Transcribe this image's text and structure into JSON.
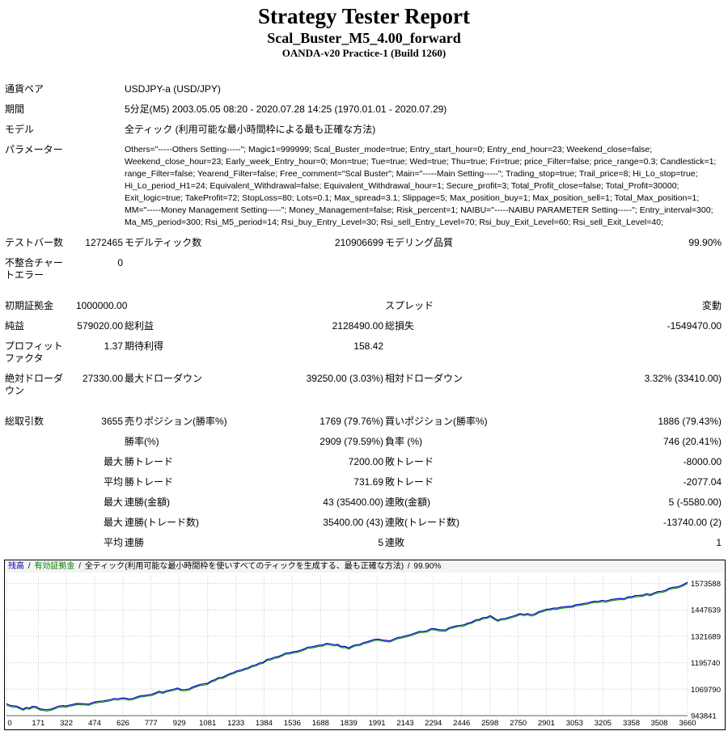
{
  "header": {
    "title": "Strategy Tester Report",
    "subtitle": "Scal_Buster_M5_4.00_forward",
    "server": "OANDA-v20 Practice-1 (Build 1260)"
  },
  "stats": {
    "rows": [
      {
        "cells": [
          {
            "t": "通貨ペア"
          },
          {
            "t": ""
          },
          {
            "t": "USDJPY-a (USD/JPY)",
            "span": 4,
            "align": "left"
          }
        ]
      },
      {
        "cells": [
          {
            "t": "期間"
          },
          {
            "t": ""
          },
          {
            "t": "5分足(M5) 2003.05.05 08:20 - 2020.07.28 14:25 (1970.01.01 - 2020.07.29)",
            "span": 4,
            "align": "left"
          }
        ]
      },
      {
        "cells": [
          {
            "t": "モデル"
          },
          {
            "t": ""
          },
          {
            "t": "全ティック (利用可能な最小時間枠による最も正確な方法)",
            "span": 4,
            "align": "left"
          }
        ]
      },
      {
        "cells": [
          {
            "t": "パラメーター",
            "cls": "vmid"
          },
          {
            "t": ""
          },
          {
            "t": "Others=\"-----Others Setting-----\"; Magic1=999999; Scal_Buster_mode=true; Entry_start_hour=0; Entry_end_hour=23; Weekend_close=false; Weekend_close_hour=23; Early_week_Entry_hour=0; Mon=true; Tue=true; Wed=true; Thu=true; Fri=true; price_Filter=false; price_range=0.3; Candlestick=1; range_Filter=false; Yearend_Filter=false; Free_comment=\"Scal Buster\"; Main=\"-----Main Setting-----\"; Trading_stop=true; Trail_price=8; Hi_Lo_stop=true; Hi_Lo_period_H1=24; Equivalent_Withdrawal=false; Equivalent_Withdrawal_hour=1; Secure_profit=3; Total_Profit_close=false; Total_Profit=30000; Exit_logic=true; TakeProfit=72; StopLoss=80; Lots=0.1; Max_spread=3.1; Slippage=5; Max_position_buy=1; Max_position_sell=1; Total_Max_position=1; MM=\"-----Money Management Setting-----\"; Money_Management=false; Risk_percent=1; NAIBU=\"-----NAIBU PARAMETER Setting-----\"; Entry_interval=300; Ma_M5_period=300; Rsi_M5_period=14; Rsi_buy_Entry_Level=30; Rsi_sell_Entry_Level=70; Rsi_buy_Exit_Level=60; Rsi_sell_Exit_Level=40;",
            "span": 4,
            "align": "left",
            "cls": "param"
          }
        ]
      },
      {
        "cells": [
          {
            "t": "テストバー数"
          },
          {
            "t": "1272465"
          },
          {
            "t": "モデルティック数"
          },
          {
            "t": "210906699"
          },
          {
            "t": "モデリング品質"
          },
          {
            "t": "99.90%"
          }
        ]
      },
      {
        "cells": [
          {
            "t": "不整合チャー\nトエラー"
          },
          {
            "t": "0"
          },
          {
            "t": "",
            "span": 4
          }
        ]
      },
      {
        "spacer": true
      },
      {
        "cells": [
          {
            "t": "初期証拠金"
          },
          {
            "t": "1000000.00"
          },
          {
            "t": "",
            "span": 2
          },
          {
            "t": "スプレッド"
          },
          {
            "t": "変動"
          }
        ]
      },
      {
        "cells": [
          {
            "t": "純益"
          },
          {
            "t": "579020.00"
          },
          {
            "t": "総利益"
          },
          {
            "t": "2128490.00"
          },
          {
            "t": "総損失"
          },
          {
            "t": "-1549470.00"
          }
        ]
      },
      {
        "cells": [
          {
            "t": "プロフィット\nファクタ"
          },
          {
            "t": "1.37"
          },
          {
            "t": "期待利得"
          },
          {
            "t": "158.42"
          },
          {
            "t": "",
            "span": 2
          }
        ]
      },
      {
        "cells": [
          {
            "t": "絶対ドローダ\nウン"
          },
          {
            "t": "27330.00"
          },
          {
            "t": "最大ドローダウン"
          },
          {
            "t": "39250.00 (3.03%)"
          },
          {
            "t": "相対ドローダウン"
          },
          {
            "t": "3.32% (33410.00)"
          }
        ]
      },
      {
        "spacer": true
      },
      {
        "cells": [
          {
            "t": "総取引数"
          },
          {
            "t": "3655"
          },
          {
            "t": "売りポジション(勝率%)"
          },
          {
            "t": "1769 (79.76%)"
          },
          {
            "t": "買いポジション(勝率%)"
          },
          {
            "t": "1886 (79.43%)"
          }
        ]
      },
      {
        "cells": [
          {
            "t": ""
          },
          {
            "t": ""
          },
          {
            "t": "勝率(%)"
          },
          {
            "t": "2909 (79.59%)"
          },
          {
            "t": "負率 (%)"
          },
          {
            "t": "746 (20.41%)"
          }
        ]
      },
      {
        "cells": [
          {
            "t": ""
          },
          {
            "t": "最大"
          },
          {
            "t": "勝トレード"
          },
          {
            "t": "7200.00"
          },
          {
            "t": "敗トレード"
          },
          {
            "t": "-8000.00"
          }
        ]
      },
      {
        "cells": [
          {
            "t": ""
          },
          {
            "t": "平均"
          },
          {
            "t": "勝トレード"
          },
          {
            "t": "731.69"
          },
          {
            "t": "敗トレード"
          },
          {
            "t": "-2077.04"
          }
        ]
      },
      {
        "cells": [
          {
            "t": ""
          },
          {
            "t": "最大"
          },
          {
            "t": "連勝(金額)"
          },
          {
            "t": "43 (35400.00)"
          },
          {
            "t": "連敗(金額)"
          },
          {
            "t": "5 (-5580.00)"
          }
        ]
      },
      {
        "cells": [
          {
            "t": ""
          },
          {
            "t": "最大"
          },
          {
            "t": "連勝(トレード数)"
          },
          {
            "t": "35400.00 (43)"
          },
          {
            "t": "連敗(トレード数)"
          },
          {
            "t": "-13740.00 (2)"
          }
        ]
      },
      {
        "cells": [
          {
            "t": ""
          },
          {
            "t": "平均"
          },
          {
            "t": "連勝"
          },
          {
            "t": "5"
          },
          {
            "t": "連敗"
          },
          {
            "t": "1"
          }
        ]
      }
    ]
  },
  "chart_data": {
    "type": "line",
    "caption": {
      "balance_label": "残高",
      "equity_label": "有効証拠金",
      "sep": "/",
      "model": "全ティック(利用可能な最小時間枠を使いすべてのティックを生成する、最も正確な方法)",
      "quality": "99.90%"
    },
    "x_ticks": [
      0,
      171,
      322,
      474,
      626,
      777,
      929,
      1081,
      1233,
      1384,
      1536,
      1688,
      1839,
      1991,
      2143,
      2294,
      2446,
      2598,
      2750,
      2901,
      3053,
      3205,
      3358,
      3508,
      3660
    ],
    "y_ticks": [
      943841,
      1069790,
      1195740,
      1321689,
      1447639,
      1573588
    ],
    "xlim": [
      0,
      3660
    ],
    "ylim": [
      943841,
      1606000
    ],
    "grid": true,
    "series": [
      {
        "name": "残高",
        "color": "#0000c8",
        "points": [
          [
            0,
            1000000
          ],
          [
            40,
            990000
          ],
          [
            90,
            975000
          ],
          [
            140,
            988000
          ],
          [
            200,
            973000
          ],
          [
            260,
            982000
          ],
          [
            320,
            990000
          ],
          [
            380,
            1002000
          ],
          [
            440,
            998000
          ],
          [
            500,
            1012000
          ],
          [
            560,
            1020000
          ],
          [
            620,
            1028000
          ],
          [
            680,
            1026000
          ],
          [
            740,
            1040000
          ],
          [
            800,
            1052000
          ],
          [
            860,
            1062000
          ],
          [
            920,
            1075000
          ],
          [
            960,
            1068000
          ],
          [
            1000,
            1080000
          ],
          [
            1060,
            1095000
          ],
          [
            1120,
            1115000
          ],
          [
            1180,
            1135000
          ],
          [
            1240,
            1158000
          ],
          [
            1300,
            1172000
          ],
          [
            1360,
            1195000
          ],
          [
            1420,
            1215000
          ],
          [
            1480,
            1232000
          ],
          [
            1540,
            1248000
          ],
          [
            1600,
            1262000
          ],
          [
            1660,
            1275000
          ],
          [
            1720,
            1288000
          ],
          [
            1780,
            1283000
          ],
          [
            1840,
            1266000
          ],
          [
            1880,
            1282000
          ],
          [
            1940,
            1296000
          ],
          [
            2000,
            1308000
          ],
          [
            2060,
            1300000
          ],
          [
            2120,
            1318000
          ],
          [
            2180,
            1332000
          ],
          [
            2240,
            1345000
          ],
          [
            2300,
            1358000
          ],
          [
            2360,
            1352000
          ],
          [
            2420,
            1372000
          ],
          [
            2480,
            1385000
          ],
          [
            2540,
            1402000
          ],
          [
            2600,
            1420000
          ],
          [
            2640,
            1398000
          ],
          [
            2700,
            1412000
          ],
          [
            2760,
            1430000
          ],
          [
            2820,
            1424000
          ],
          [
            2880,
            1444000
          ],
          [
            2940,
            1456000
          ],
          [
            3000,
            1462000
          ],
          [
            3060,
            1472000
          ],
          [
            3120,
            1480000
          ],
          [
            3180,
            1488000
          ],
          [
            3240,
            1494000
          ],
          [
            3300,
            1502000
          ],
          [
            3360,
            1510000
          ],
          [
            3420,
            1518000
          ],
          [
            3480,
            1528000
          ],
          [
            3540,
            1540000
          ],
          [
            3600,
            1556000
          ],
          [
            3660,
            1579020
          ]
        ]
      },
      {
        "name": "有効証拠金",
        "color": "#008000"
      }
    ]
  }
}
